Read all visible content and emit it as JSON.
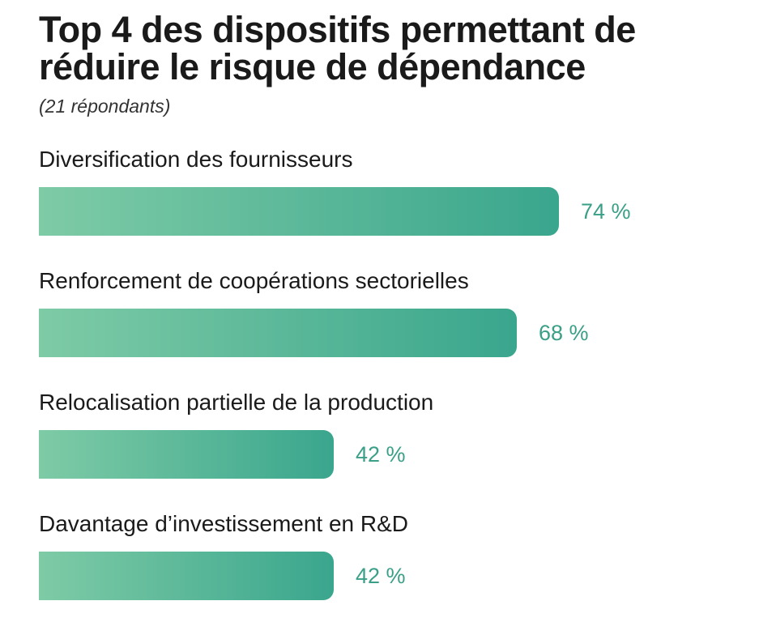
{
  "chart_data": {
    "type": "bar",
    "orientation": "horizontal",
    "title": "Top 4 des dispositifs permettant de réduire le risque de dépendance",
    "subtitle": "(21 répondants)",
    "categories": [
      "Diversification des fournisseurs",
      "Renforcement de coopérations sectorielles",
      "Relocalisation partielle de la production",
      "Davantage d’investissement en R&D"
    ],
    "values": [
      74,
      68,
      42,
      42
    ],
    "value_labels": [
      "74 %",
      "68 %",
      "42 %",
      "42 %"
    ],
    "unit": "%",
    "xlim": [
      0,
      100
    ],
    "grid": false,
    "legend": "none"
  },
  "colors": {
    "bar_start": "#7ecba6",
    "bar_end": "#3aa68d",
    "value_text": "#3a9f87",
    "title_text": "#1a1a1a"
  }
}
